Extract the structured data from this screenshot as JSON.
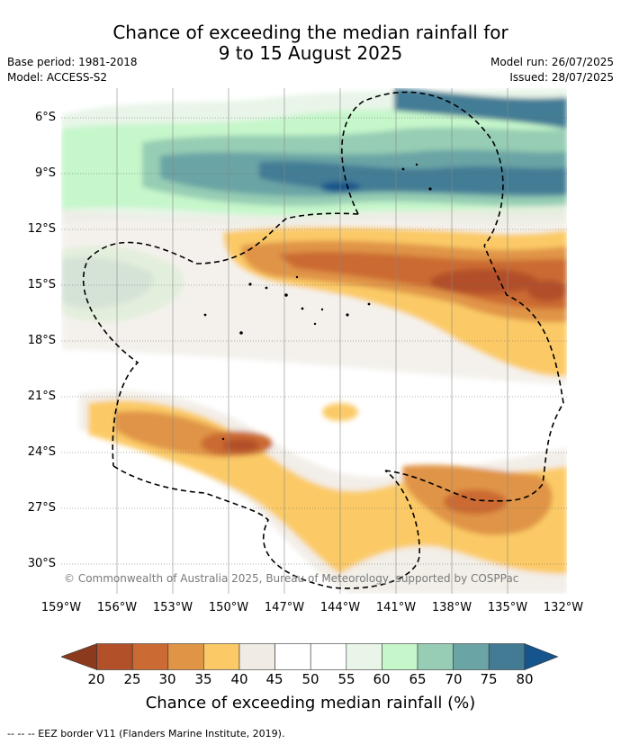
{
  "title": {
    "line1": "Chance of exceeding the median rainfall for",
    "line2": "9 to 15 August 2025"
  },
  "meta": {
    "base_period": "Base period: 1981-2018",
    "model": "Model: ACCESS-S2",
    "model_run": "Model run: 26/07/2025",
    "issued": "Issued: 28/07/2025"
  },
  "map": {
    "lat_labels": [
      "6°S",
      "9°S",
      "12°S",
      "15°S",
      "18°S",
      "21°S",
      "24°S",
      "27°S",
      "30°S"
    ],
    "lon_labels": [
      "159°W",
      "156°W",
      "153°W",
      "150°W",
      "147°W",
      "144°W",
      "141°W",
      "138°W",
      "135°W",
      "132°W"
    ],
    "copyright": "© Commonwealth of Australia 2025, Bureau of Meteorology, supported by COSPPac"
  },
  "colorbar": {
    "title": "Chance of exceeding median rainfall (%)",
    "labels": [
      "20",
      "25",
      "30",
      "35",
      "40",
      "45",
      "50",
      "55",
      "60",
      "65",
      "70",
      "75",
      "80"
    ],
    "colors": [
      "#8c3a1e",
      "#b2502a",
      "#cb6a32",
      "#e09446",
      "#fbca66",
      "#f0ebe4",
      "#ffffff",
      "#ffffff",
      "#e8f5e8",
      "#c6f7cb",
      "#96cdb4",
      "#6aa4a5",
      "#437b95",
      "#15548c"
    ]
  },
  "footer": "--  --  -- EEZ border V11 (Flanders Marine Institute, 2019)."
}
